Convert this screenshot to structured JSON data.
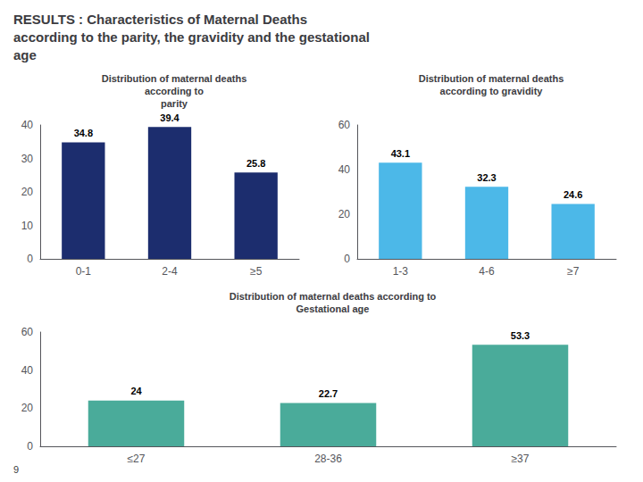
{
  "title": "RESULTS : Characteristics of Maternal Deaths\naccording to the parity, the gravidity and the gestational\nage",
  "annotations": [
    "9"
  ],
  "chart_data": [
    {
      "type": "bar",
      "title": "Distribution of maternal deaths\naccording to\nparity",
      "categories": [
        "0-1",
        "2-4",
        "≥5"
      ],
      "values": [
        34.8,
        39.4,
        25.8
      ],
      "color": "#1c2d6e",
      "ylim": [
        0,
        40
      ],
      "yticks": [
        0,
        10,
        20,
        30,
        40
      ],
      "grid": false,
      "data_labels": true
    },
    {
      "type": "bar",
      "title": "Distribution of maternal deaths\naccording to gravidity",
      "categories": [
        "1-3",
        "4-6",
        "≥7"
      ],
      "values": [
        43.1,
        32.3,
        24.6
      ],
      "color": "#4cb8e8",
      "ylim": [
        0,
        60
      ],
      "yticks": [
        0,
        20,
        40,
        60
      ],
      "grid": false,
      "data_labels": true
    },
    {
      "type": "bar",
      "title": "Distribution of maternal deaths according to\nGestational age",
      "categories": [
        "≤27",
        "28-36",
        "≥37"
      ],
      "values": [
        24,
        22.7,
        53.3
      ],
      "color": "#4aab9a",
      "ylim": [
        0,
        60
      ],
      "yticks": [
        0,
        20,
        40,
        60
      ],
      "grid": false,
      "data_labels": true
    }
  ]
}
